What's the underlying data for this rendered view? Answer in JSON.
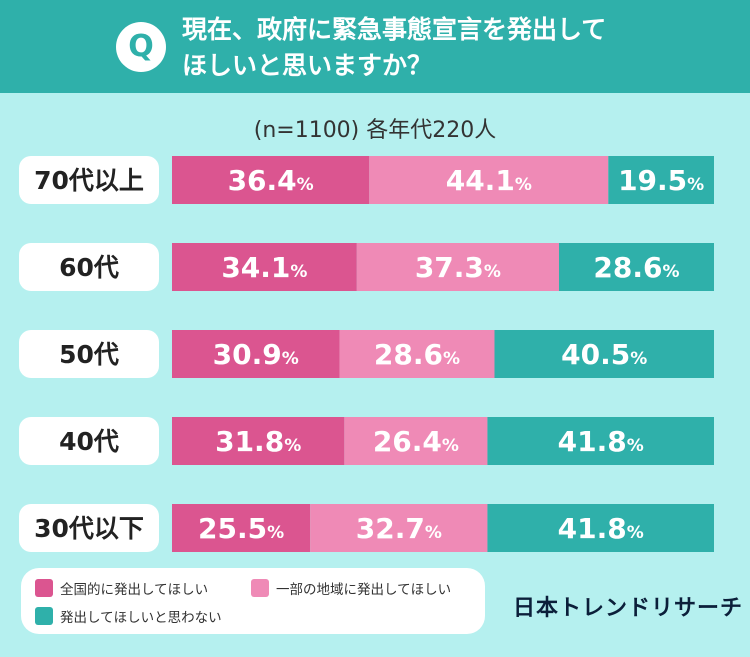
{
  "question": {
    "badge": "Q",
    "line1": "現在、政府に緊急事態宣言を発出して",
    "line2": "ほしいと思いますか？"
  },
  "subtitle": "(n=1100) 各年代220人",
  "colors": {
    "header": "#2fb0aa",
    "background": "#b5f0ef",
    "series": [
      "#db5590",
      "#ef8ab6",
      "#2fb0aa"
    ]
  },
  "chart_data": {
    "type": "bar",
    "orientation": "horizontal",
    "stacked": true,
    "percent_suffix": "%",
    "categories": [
      "70代以上",
      "60代",
      "50代",
      "40代",
      "30代以下"
    ],
    "series": [
      {
        "name": "全国的に発出してほしい",
        "values": [
          36.4,
          34.1,
          30.9,
          31.8,
          25.5
        ]
      },
      {
        "name": "一部の地域に発出してほしい",
        "values": [
          44.1,
          37.3,
          28.6,
          26.4,
          32.7
        ]
      },
      {
        "name": "発出してほしいと思わない",
        "values": [
          19.5,
          28.6,
          40.5,
          41.8,
          41.8
        ]
      }
    ],
    "xlim": [
      0,
      100
    ],
    "legend_position": "bottom-left"
  },
  "legend": {
    "item1": "全国的に発出してほしい",
    "item2": "一部の地域に発出してほしい",
    "item3": "発出してほしいと思わない"
  },
  "brand": "日本トレンドリサーチ"
}
